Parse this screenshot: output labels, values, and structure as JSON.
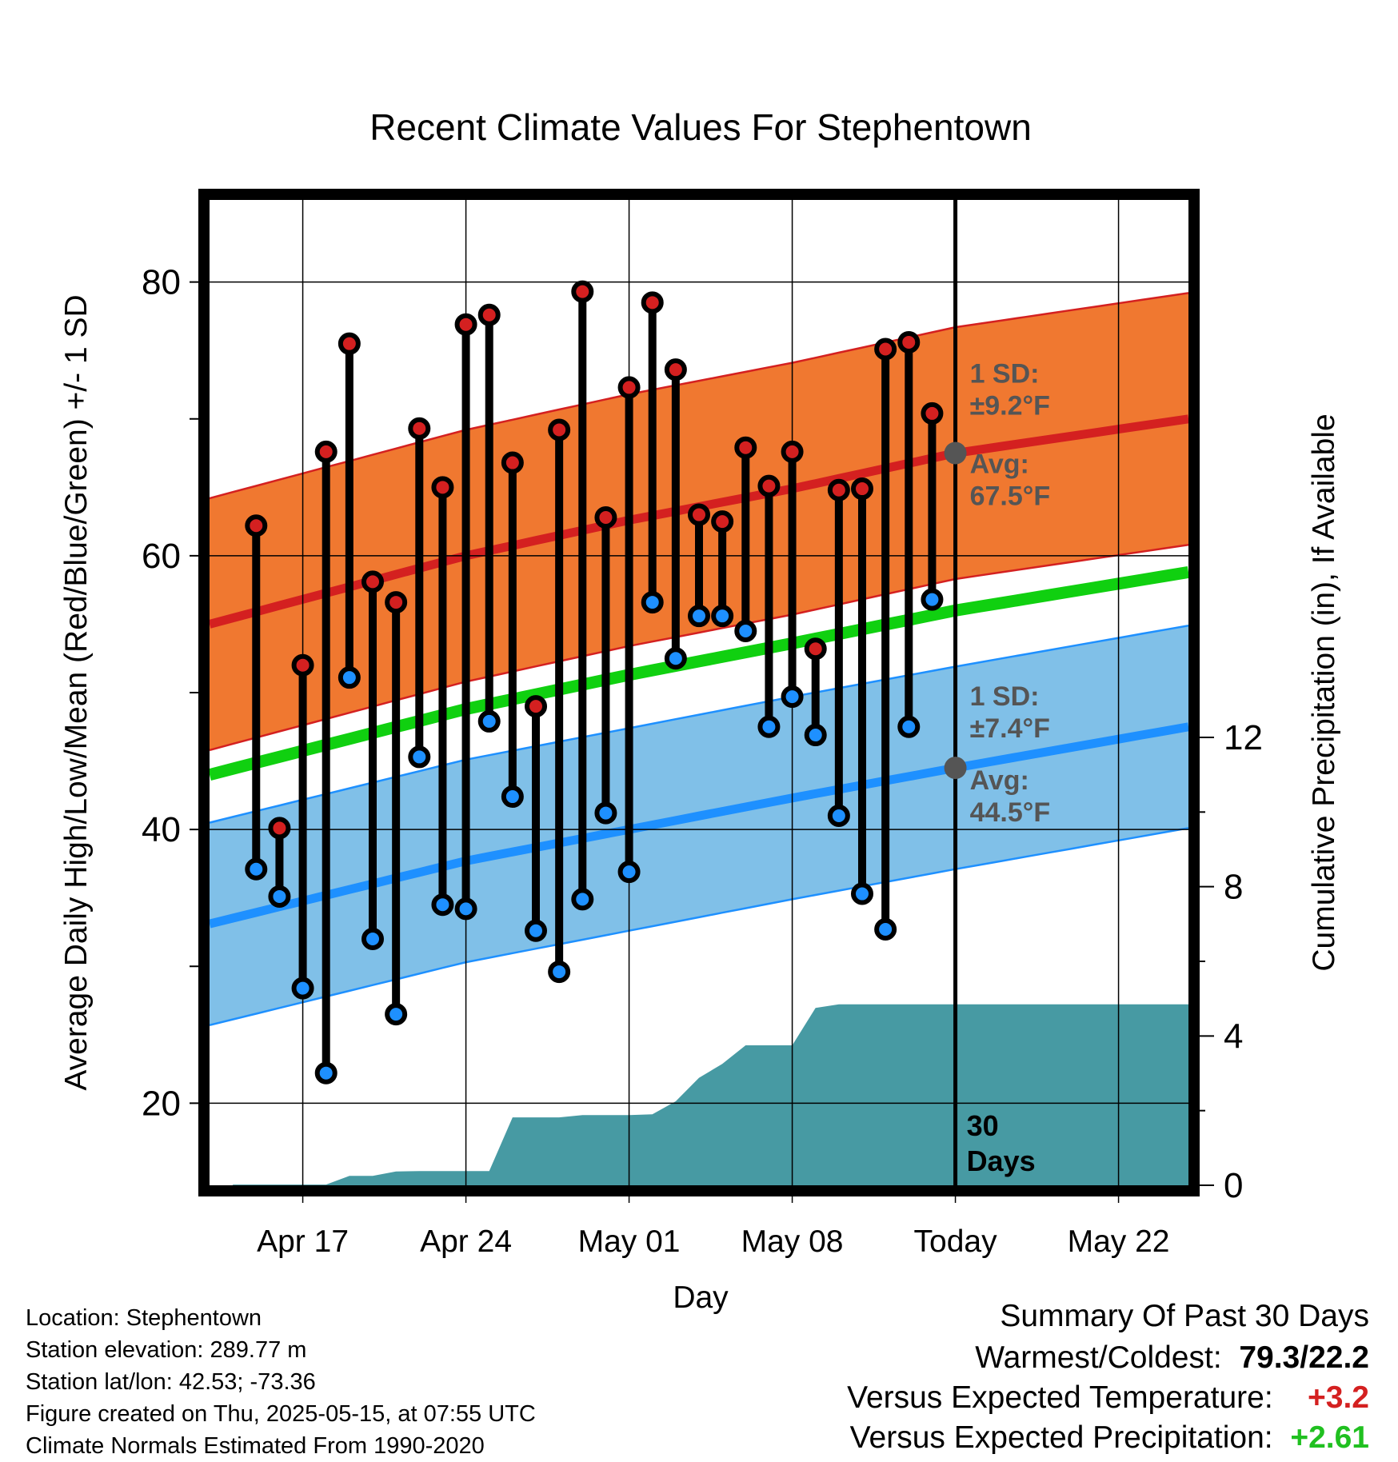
{
  "chart_data": {
    "type": "line",
    "title": "Recent Climate Values For Stephentown",
    "xlabel": "Day",
    "ylabel": "Average Daily High/Low/Mean (Red/Blue/Green) +/- 1 SD",
    "y2label": "Cumulative Precipitation (in), If Available",
    "x_tick_labels": [
      "Apr 17",
      "Apr 24",
      "May 01",
      "May 08",
      "Today",
      "May 22"
    ],
    "x_range_days": [
      "2025-04-13",
      "2025-05-25"
    ],
    "today": "2025-05-15",
    "today_label": "30\nDays",
    "ylim": [
      14,
      86
    ],
    "y_ticks": [
      20,
      40,
      60,
      80
    ],
    "y2lim": [
      0,
      26.4
    ],
    "y2_ticks": [
      0,
      4,
      8,
      12
    ],
    "grid": true,
    "series": [
      {
        "name": "Daily High",
        "dates": [
          "2025-04-15",
          "2025-04-16",
          "2025-04-17",
          "2025-04-18",
          "2025-04-19",
          "2025-04-20",
          "2025-04-21",
          "2025-04-22",
          "2025-04-23",
          "2025-04-24",
          "2025-04-25",
          "2025-04-26",
          "2025-04-27",
          "2025-04-28",
          "2025-04-29",
          "2025-04-30",
          "2025-05-01",
          "2025-05-02",
          "2025-05-03",
          "2025-05-04",
          "2025-05-05",
          "2025-05-06",
          "2025-05-07",
          "2025-05-08",
          "2025-05-09",
          "2025-05-10",
          "2025-05-11",
          "2025-05-12",
          "2025-05-13",
          "2025-05-14"
        ],
        "values": [
          62.2,
          40.1,
          52.0,
          67.6,
          75.5,
          58.1,
          56.6,
          69.3,
          65.0,
          76.9,
          77.6,
          66.8,
          49.0,
          69.2,
          79.3,
          62.8,
          72.3,
          78.5,
          73.6,
          63.0,
          62.5,
          67.9,
          65.1,
          67.6,
          53.2,
          64.8,
          64.9,
          75.1,
          75.6,
          70.4
        ]
      },
      {
        "name": "Daily Low",
        "dates": [
          "2025-04-15",
          "2025-04-16",
          "2025-04-17",
          "2025-04-18",
          "2025-04-19",
          "2025-04-20",
          "2025-04-21",
          "2025-04-22",
          "2025-04-23",
          "2025-04-24",
          "2025-04-25",
          "2025-04-26",
          "2025-04-27",
          "2025-04-28",
          "2025-04-29",
          "2025-04-30",
          "2025-05-01",
          "2025-05-02",
          "2025-05-03",
          "2025-05-04",
          "2025-05-05",
          "2025-05-06",
          "2025-05-07",
          "2025-05-08",
          "2025-05-09",
          "2025-05-10",
          "2025-05-11",
          "2025-05-12",
          "2025-05-13",
          "2025-05-14"
        ],
        "values": [
          37.1,
          35.1,
          28.4,
          22.2,
          51.1,
          32.0,
          26.5,
          45.3,
          34.5,
          34.2,
          47.9,
          42.4,
          32.6,
          29.6,
          34.9,
          41.2,
          36.9,
          56.6,
          52.5,
          55.6,
          55.6,
          54.5,
          47.5,
          49.7,
          46.9,
          41.0,
          35.3,
          32.7,
          47.5,
          56.8
        ]
      },
      {
        "name": "Normal High",
        "dates": [
          "2025-04-13",
          "2025-04-24",
          "2025-05-01",
          "2025-05-08",
          "2025-05-15",
          "2025-05-25"
        ],
        "values": [
          55.0,
          60.0,
          62.6,
          64.9,
          67.5,
          70.0
        ]
      },
      {
        "name": "Normal High SD",
        "dates": [
          "2025-04-13",
          "2025-05-15",
          "2025-05-25"
        ],
        "values": [
          9.2,
          9.2,
          9.2
        ]
      },
      {
        "name": "Normal Low",
        "dates": [
          "2025-04-13",
          "2025-04-24",
          "2025-05-01",
          "2025-05-08",
          "2025-05-15",
          "2025-05-25"
        ],
        "values": [
          33.1,
          37.7,
          40.0,
          42.3,
          44.5,
          47.5
        ]
      },
      {
        "name": "Normal Low SD",
        "dates": [
          "2025-04-13",
          "2025-05-15",
          "2025-05-25"
        ],
        "values": [
          7.4,
          7.4,
          7.4
        ]
      },
      {
        "name": "Normal Mean",
        "dates": [
          "2025-04-13",
          "2025-04-24",
          "2025-05-01",
          "2025-05-08",
          "2025-05-15",
          "2025-05-25"
        ],
        "values": [
          44.0,
          48.8,
          51.3,
          53.6,
          56.0,
          58.8
        ]
      },
      {
        "name": "Cumulative Precipitation",
        "dates": [
          "2025-04-14",
          "2025-04-18",
          "2025-04-19",
          "2025-04-20",
          "2025-04-21",
          "2025-04-22",
          "2025-04-25",
          "2025-04-26",
          "2025-04-27",
          "2025-04-28",
          "2025-04-29",
          "2025-04-30",
          "2025-05-01",
          "2025-05-02",
          "2025-05-03",
          "2025-05-04",
          "2025-05-05",
          "2025-05-06",
          "2025-05-07",
          "2025-05-08",
          "2025-05-09",
          "2025-05-10",
          "2025-05-11",
          "2025-05-12",
          "2025-05-25"
        ],
        "values": [
          0.02,
          0.02,
          0.25,
          0.25,
          0.37,
          0.38,
          0.38,
          1.82,
          1.82,
          1.82,
          1.88,
          1.88,
          1.88,
          1.9,
          2.25,
          2.88,
          3.25,
          3.75,
          3.75,
          3.75,
          4.75,
          4.85,
          4.85,
          4.85,
          4.85
        ]
      }
    ],
    "annotations": {
      "high_sd_text": [
        "1 SD:",
        "±9.2°F"
      ],
      "high_avg_text": [
        "Avg:",
        "67.5°F"
      ],
      "low_sd_text": [
        "1 SD:",
        "±7.4°F"
      ],
      "low_avg_text": [
        "Avg:",
        "44.5°F"
      ]
    }
  },
  "info": {
    "location": "Location: Stephentown",
    "elevation": "Station elevation: 289.77 m",
    "latlon": "Station lat/lon: 42.53; -73.36",
    "created": "Figure created on Thu, 2025-05-15, at 07:55 UTC",
    "normals": "Climate Normals Estimated From 1990-2020"
  },
  "summary": {
    "title": "Summary Of Past 30 Days",
    "warmest_coldest_label": "Warmest/Coldest:",
    "warmest_coldest_value": "79.3/22.2",
    "temp_label": "Versus Expected Temperature:",
    "temp_value": "+3.2",
    "precip_label": "Versus Expected Precipitation:",
    "precip_value": "+2.61"
  },
  "colors": {
    "high_band": "#f07830",
    "high_line": "#d42020",
    "low_band": "#80c0e8",
    "low_line": "#1e90ff",
    "mean_line": "#10d010",
    "precip": "#479aa3",
    "high_dot": "#d42020",
    "low_dot": "#1e90ff",
    "annotation": "#555555",
    "summary_temp": "#d42020",
    "summary_precip": "#20c020"
  }
}
